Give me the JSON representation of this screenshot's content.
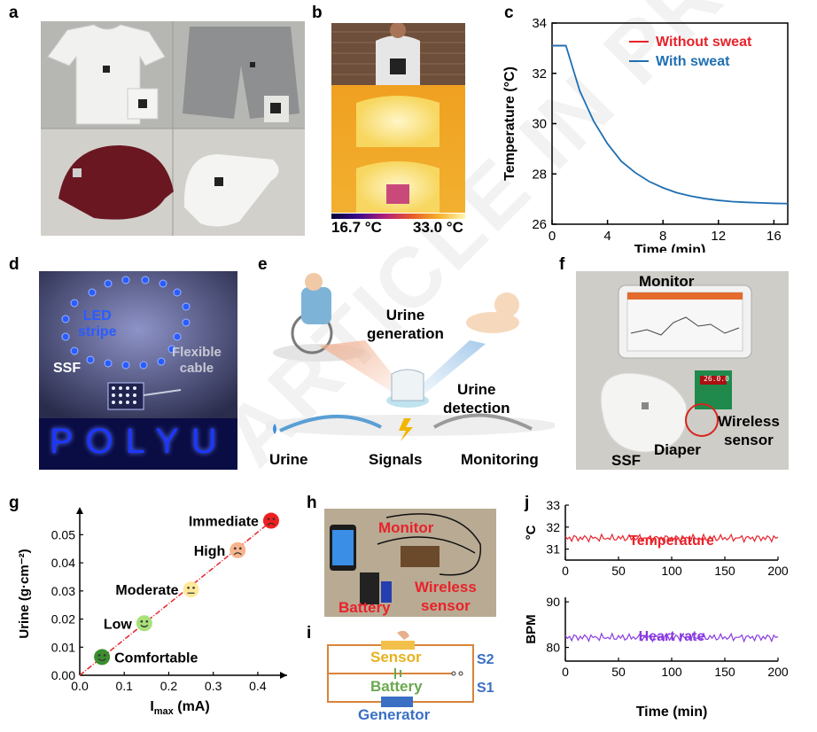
{
  "watermark": "ARTICLE IN PRESS",
  "panel_labels": [
    "a",
    "b",
    "c",
    "d",
    "e",
    "f",
    "g",
    "h",
    "i",
    "j"
  ],
  "panel_b": {
    "scale_min": "16.7 °C",
    "scale_max": "33.0 °C"
  },
  "panel_d": {
    "led": "LED\nstripe",
    "ssf": "SSF",
    "cable": "Flexible\ncable",
    "letters": "POLYU"
  },
  "panel_e": {
    "urine_generation": "Urine\ngeneration",
    "urine_detection": "Urine\ndetection",
    "flow": [
      "Urine",
      "Signals",
      "Monitoring"
    ]
  },
  "panel_f": {
    "monitor": "Monitor",
    "wireless": "Wireless\nsensor",
    "ssf": "SSF",
    "diaper": "Diaper",
    "display": "26.0.0"
  },
  "panel_h": {
    "monitor": "Monitor",
    "wireless": "Wireless\nsensor",
    "battery": "Battery"
  },
  "panel_i": {
    "sensor": "Sensor",
    "battery": "Battery",
    "generator": "Generator",
    "s2": "S2",
    "s1": "S1"
  },
  "colors": {
    "red": "#e8222a",
    "blue": "#1f6fb2",
    "purple": "#8a3be0",
    "green": "#6aa84f",
    "orange": "#d9843a"
  },
  "chart_data": [
    {
      "panel": "c",
      "type": "line",
      "xlabel": "Time (min)",
      "ylabel": "Temperature (°C)",
      "xlim": [
        0,
        17
      ],
      "ylim": [
        26,
        34
      ],
      "xticks": [
        0,
        4,
        8,
        12,
        16
      ],
      "yticks": [
        26,
        28,
        30,
        32,
        34
      ],
      "series": [
        {
          "name": "Without sweat",
          "color": "#e8222a",
          "x": [
            0,
            1
          ],
          "y": [
            33.1,
            33.1
          ]
        },
        {
          "name": "With sweat",
          "color": "#1f6fb2",
          "x": [
            0,
            1,
            2,
            3,
            4,
            5,
            6,
            7,
            8,
            9,
            10,
            11,
            12,
            13,
            14,
            15,
            16,
            17
          ],
          "y": [
            33.1,
            33.1,
            31.3,
            30.1,
            29.2,
            28.5,
            28.05,
            27.7,
            27.45,
            27.25,
            27.12,
            27.02,
            26.95,
            26.9,
            26.87,
            26.85,
            26.83,
            26.82
          ]
        }
      ]
    },
    {
      "panel": "g",
      "type": "scatter",
      "xlabel": "I",
      "xlabel_sub": "max",
      "xlabel_unit": " (mA)",
      "ylabel": "Urine (g·cm⁻²)",
      "xlim": [
        0,
        0.45
      ],
      "ylim": [
        0,
        0.058
      ],
      "xticks": [
        0.0,
        0.1,
        0.2,
        0.3,
        0.4
      ],
      "xtick_labels": [
        "0.0",
        "0.1",
        "0.2",
        "0.3",
        "0.4"
      ],
      "yticks": [
        0.0,
        0.01,
        0.02,
        0.03,
        0.04,
        0.05
      ],
      "ytick_labels": [
        "0.00",
        "0.01",
        "0.02",
        "0.03",
        "0.04",
        "0.05"
      ],
      "fit_line": {
        "x": [
          0,
          0.44
        ],
        "y": [
          0,
          0.056
        ]
      },
      "points": [
        {
          "label": "Comfortable",
          "x": 0.05,
          "y": 0.0065,
          "color": "#3c8d2f",
          "face": "smile"
        },
        {
          "label": "Low",
          "x": 0.145,
          "y": 0.0185,
          "color": "#a8e07a",
          "face": "smile"
        },
        {
          "label": "Moderate",
          "x": 0.25,
          "y": 0.0305,
          "color": "#ffe99a",
          "face": "neutral"
        },
        {
          "label": "High",
          "x": 0.355,
          "y": 0.0445,
          "color": "#f7b48e",
          "face": "frown"
        },
        {
          "label": "Immediate",
          "x": 0.43,
          "y": 0.055,
          "color": "#f01e1e",
          "face": "frown"
        }
      ]
    },
    {
      "panel": "j",
      "type": "line",
      "xlabel": "Time (min)",
      "xlim": [
        0,
        200
      ],
      "xticks": [
        0,
        50,
        100,
        150,
        200
      ],
      "subplots": [
        {
          "name": "Temperature",
          "ylabel": "°C",
          "color": "#e8222a",
          "ylim": [
            30.5,
            33
          ],
          "yticks": [
            31,
            32,
            33
          ],
          "mean": 31.5,
          "amplitude": 0.18
        },
        {
          "name": "Heart rate",
          "ylabel": "BPM",
          "color": "#8a3be0",
          "ylim": [
            77,
            91
          ],
          "yticks": [
            80,
            90
          ],
          "mean": 82.2,
          "amplitude": 0.9
        }
      ]
    }
  ]
}
